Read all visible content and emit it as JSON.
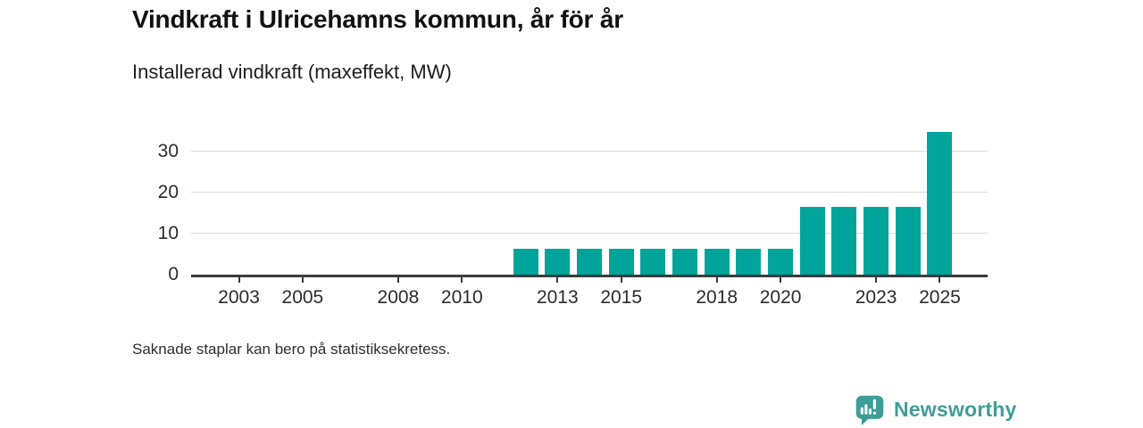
{
  "page": {
    "background_color": "#ffffff"
  },
  "header": {
    "title": "Vindkraft i Ulricehamns kommun, år för år",
    "subtitle": "Installerad vindkraft (maxeffekt, MW)"
  },
  "footnote": "Saknade staplar kan bero på statistiksekretess.",
  "branding": {
    "logo_text": "Newsworthy",
    "logo_icon": "newsworthy-speech-bubble-bar-chart-icon",
    "logo_color": "#3f9d97"
  },
  "chart_data": {
    "type": "bar",
    "title": "Vindkraft i Ulricehamns kommun, år för år",
    "subtitle": "Installerad vindkraft (maxeffekt, MW)",
    "unit": "MW",
    "xlabel": "",
    "ylabel": "",
    "x": [
      2012,
      2013,
      2014,
      2015,
      2016,
      2017,
      2018,
      2019,
      2020,
      2021,
      2022,
      2023,
      2024,
      2025
    ],
    "values": [
      6.3,
      6.3,
      6.3,
      6.3,
      6.3,
      6.3,
      6.3,
      6.3,
      6.3,
      16.5,
      16.5,
      16.5,
      16.5,
      34.7
    ],
    "x_domain": [
      2002,
      2026
    ],
    "ylim": [
      0,
      36
    ],
    "yticks": [
      0,
      10,
      20,
      30
    ],
    "xticks": [
      2003,
      2005,
      2008,
      2010,
      2013,
      2015,
      2018,
      2020,
      2023,
      2025
    ],
    "grid": "horizontal-gridlines",
    "legend": "none",
    "bar_color": "#00a49b",
    "axis_color": "#3b3b3b",
    "gridline_color": "#dadada",
    "text_color": "#2b2b2b"
  }
}
